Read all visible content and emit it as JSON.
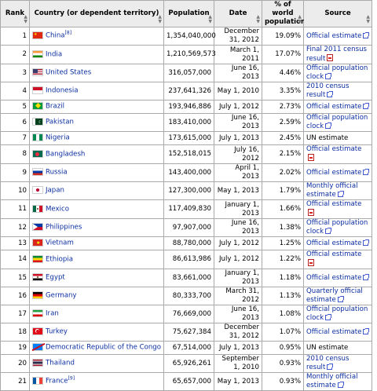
{
  "headers": {
    "rank": "Rank",
    "country": "Country (or dependent territory)",
    "population": "Population",
    "date": "Date",
    "pct": "% of world population",
    "source": "Source"
  },
  "sort_icon": "sort-arrows-icon",
  "rows": [
    {
      "rank": "1",
      "country": "China",
      "note": "[8]",
      "population": "1,354,040,000",
      "date": "December 31, 2012",
      "pct": "19.09%",
      "source": "Official estimate",
      "source_link": true,
      "ext": true,
      "pdf": false,
      "flag": "cn",
      "tall": true
    },
    {
      "rank": "2",
      "country": "India",
      "note": "",
      "population": "1,210,569,573",
      "date": "March 1, 2011",
      "pct": "17.07%",
      "source": "Final 2011 census result",
      "source_link": true,
      "ext": false,
      "pdf": true,
      "flag": "in",
      "tall": true
    },
    {
      "rank": "3",
      "country": "United States",
      "note": "",
      "population": "316,057,000",
      "date": "June 16, 2013",
      "pct": "4.46%",
      "source": "Official population clock",
      "source_link": true,
      "ext": true,
      "pdf": false,
      "flag": "us",
      "tall": true
    },
    {
      "rank": "4",
      "country": "Indonesia",
      "note": "",
      "population": "237,641,326",
      "date": "May 1, 2010",
      "pct": "3.35%",
      "source": "2010 census result",
      "source_link": true,
      "ext": true,
      "pdf": false,
      "flag": "id",
      "tall": false
    },
    {
      "rank": "5",
      "country": "Brazil",
      "note": "",
      "population": "193,946,886",
      "date": "July 1, 2012",
      "pct": "2.73%",
      "source": "Official estimate",
      "source_link": true,
      "ext": true,
      "pdf": false,
      "flag": "br",
      "tall": false
    },
    {
      "rank": "6",
      "country": "Pakistan",
      "note": "",
      "population": "183,410,000",
      "date": "June 16, 2013",
      "pct": "2.59%",
      "source": "Official population clock",
      "source_link": true,
      "ext": true,
      "pdf": false,
      "flag": "pk",
      "tall": true
    },
    {
      "rank": "7",
      "country": "Nigeria",
      "note": "",
      "population": "173,615,000",
      "date": "July 1, 2013",
      "pct": "2.45%",
      "source": "UN estimate",
      "source_link": false,
      "ext": false,
      "pdf": false,
      "flag": "ng",
      "tall": false
    },
    {
      "rank": "8",
      "country": "Bangladesh",
      "note": "",
      "population": "152,518,015",
      "date": "July 16, 2012",
      "pct": "2.15%",
      "source": "Official estimate",
      "source_link": true,
      "ext": false,
      "pdf": true,
      "flag": "bd",
      "tall": false
    },
    {
      "rank": "9",
      "country": "Russia",
      "note": "",
      "population": "143,400,000",
      "date": "April 1, 2013",
      "pct": "2.02%",
      "source": "Official estimate",
      "source_link": true,
      "ext": true,
      "pdf": false,
      "flag": "ru",
      "tall": false
    },
    {
      "rank": "10",
      "country": "Japan",
      "note": "",
      "population": "127,300,000",
      "date": "May 1, 2013",
      "pct": "1.79%",
      "source": "Monthly official estimate",
      "source_link": true,
      "ext": true,
      "pdf": false,
      "flag": "jp",
      "tall": true
    },
    {
      "rank": "11",
      "country": "Mexico",
      "note": "",
      "population": "117,409,830",
      "date": "January 1, 2013",
      "pct": "1.66%",
      "source": "Official estimate",
      "source_link": true,
      "ext": false,
      "pdf": true,
      "flag": "mx",
      "tall": false
    },
    {
      "rank": "12",
      "country": "Philippines",
      "note": "",
      "population": "97,907,000",
      "date": "June 16, 2013",
      "pct": "1.38%",
      "source": "Official population clock",
      "source_link": true,
      "ext": true,
      "pdf": false,
      "flag": "ph",
      "tall": true
    },
    {
      "rank": "13",
      "country": "Vietnam",
      "note": "",
      "population": "88,780,000",
      "date": "July 1, 2012",
      "pct": "1.25%",
      "source": "Official estimate",
      "source_link": true,
      "ext": true,
      "pdf": false,
      "flag": "vn",
      "tall": false
    },
    {
      "rank": "14",
      "country": "Ethiopia",
      "note": "",
      "population": "86,613,986",
      "date": "July 1, 2012",
      "pct": "1.22%",
      "source": "Official estimate",
      "source_link": true,
      "ext": false,
      "pdf": true,
      "flag": "et",
      "tall": false
    },
    {
      "rank": "15",
      "country": "Egypt",
      "note": "",
      "population": "83,661,000",
      "date": "January 1, 2013",
      "pct": "1.18%",
      "source": "Official estimate",
      "source_link": true,
      "ext": true,
      "pdf": false,
      "flag": "eg",
      "tall": false
    },
    {
      "rank": "16",
      "country": "Germany",
      "note": "",
      "population": "80,333,700",
      "date": "March 31, 2012",
      "pct": "1.13%",
      "source": "Quarterly official estimate",
      "source_link": true,
      "ext": true,
      "pdf": false,
      "flag": "de",
      "tall": true
    },
    {
      "rank": "17",
      "country": "Iran",
      "note": "",
      "population": "76,669,000",
      "date": "June 16, 2013",
      "pct": "1.08%",
      "source": "Official population clock",
      "source_link": true,
      "ext": true,
      "pdf": false,
      "flag": "ir",
      "tall": true
    },
    {
      "rank": "18",
      "country": "Turkey",
      "note": "",
      "population": "75,627,384",
      "date": "December 31, 2012",
      "pct": "1.07%",
      "source": "Official estimate",
      "source_link": true,
      "ext": true,
      "pdf": false,
      "flag": "tr",
      "tall": true
    },
    {
      "rank": "19",
      "country": "Democratic Republic of the Congo",
      "note": "",
      "population": "67,514,000",
      "date": "July 1, 2013",
      "pct": "0.95%",
      "source": "UN estimate",
      "source_link": false,
      "ext": false,
      "pdf": false,
      "flag": "cd",
      "tall": false
    },
    {
      "rank": "20",
      "country": "Thailand",
      "note": "",
      "population": "65,926,261",
      "date": "September 1, 2010",
      "pct": "0.93%",
      "source": "2010 census result",
      "source_link": true,
      "ext": true,
      "pdf": false,
      "flag": "th",
      "tall": true
    },
    {
      "rank": "21",
      "country": "France",
      "note": "[9]",
      "population": "65,657,000",
      "date": "May 1, 2013",
      "pct": "0.93%",
      "source": "Monthly official estimate",
      "source_link": true,
      "ext": true,
      "pdf": false,
      "flag": "fr",
      "tall": true
    }
  ]
}
